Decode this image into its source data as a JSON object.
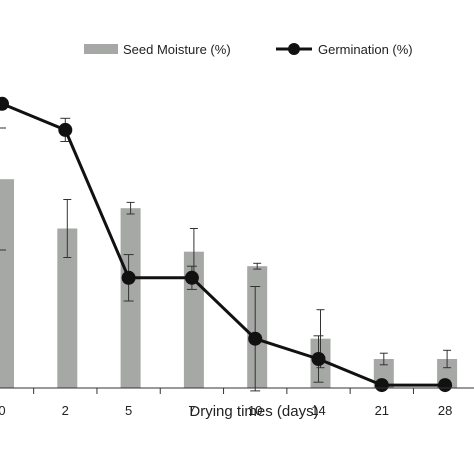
{
  "chart_data": {
    "type": "bar+line",
    "title": "",
    "xlabel": "Drying times (days)",
    "ylabel": "",
    "categories": [
      "0",
      "2",
      "5",
      "7",
      "10",
      "14",
      "21",
      "28"
    ],
    "ylim": [
      0,
      100
    ],
    "grid": false,
    "legend_position": "top-right",
    "series": [
      {
        "name": "Seed Moisture (%)",
        "kind": "bar",
        "color": "#a6a8a5",
        "values": [
          72,
          55,
          62,
          47,
          42,
          17,
          10,
          10
        ],
        "errors": [
          0,
          10,
          2,
          8,
          1,
          10,
          2,
          3
        ]
      },
      {
        "name": "Germination (%)",
        "kind": "line",
        "color": "#111111",
        "values": [
          98,
          89,
          38,
          38,
          17,
          10,
          1,
          1
        ],
        "errors": [
          0,
          4,
          8,
          4,
          18,
          8,
          0,
          0
        ]
      }
    ]
  }
}
